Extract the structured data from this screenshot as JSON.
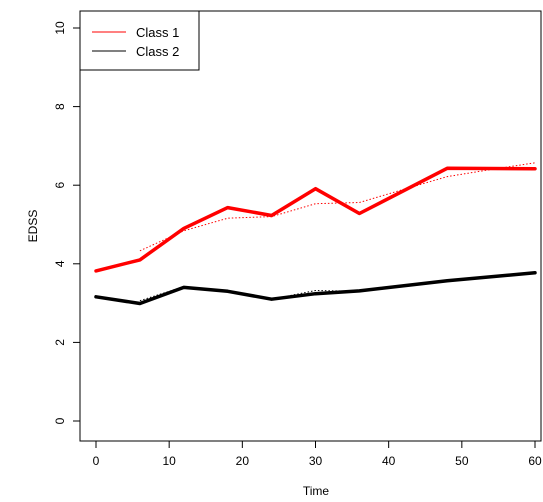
{
  "chart_data": {
    "type": "line",
    "xlabel": "Time",
    "ylabel": "EDSS",
    "xlim": [
      0,
      60
    ],
    "ylim": [
      0,
      10
    ],
    "x_ticks": [
      0,
      10,
      20,
      30,
      40,
      50,
      60
    ],
    "y_ticks": [
      0,
      2,
      4,
      6,
      8,
      10
    ],
    "grid": false,
    "legend_position": "top-left",
    "series": [
      {
        "name": "Class 1",
        "color": "#ff0000",
        "style": "solid-thick",
        "x": [
          0,
          6,
          12,
          18,
          24,
          30,
          36,
          48,
          60
        ],
        "values": [
          3.82,
          4.1,
          4.9,
          5.43,
          5.23,
          5.91,
          5.28,
          6.43,
          6.42
        ]
      },
      {
        "name": "Class 2",
        "color": "#000000",
        "style": "solid-thick",
        "x": [
          0,
          6,
          12,
          18,
          24,
          30,
          36,
          48,
          60
        ],
        "values": [
          3.16,
          2.99,
          3.4,
          3.3,
          3.1,
          3.24,
          3.31,
          3.57,
          3.77
        ]
      },
      {
        "color": "#ff0000",
        "style": "dotted",
        "x": [
          6,
          12,
          18,
          24,
          30,
          36,
          42,
          48,
          54,
          60
        ],
        "values": [
          4.33,
          4.84,
          5.16,
          5.2,
          5.53,
          5.56,
          5.89,
          6.22,
          6.4,
          6.57
        ]
      },
      {
        "color": "#000000",
        "style": "dotted",
        "x": [
          6,
          12,
          18,
          24,
          30,
          36,
          42,
          48,
          54,
          60
        ],
        "values": [
          3.06,
          3.42,
          3.29,
          3.1,
          3.32,
          3.3,
          3.44,
          3.58,
          3.67,
          3.76
        ]
      }
    ]
  }
}
